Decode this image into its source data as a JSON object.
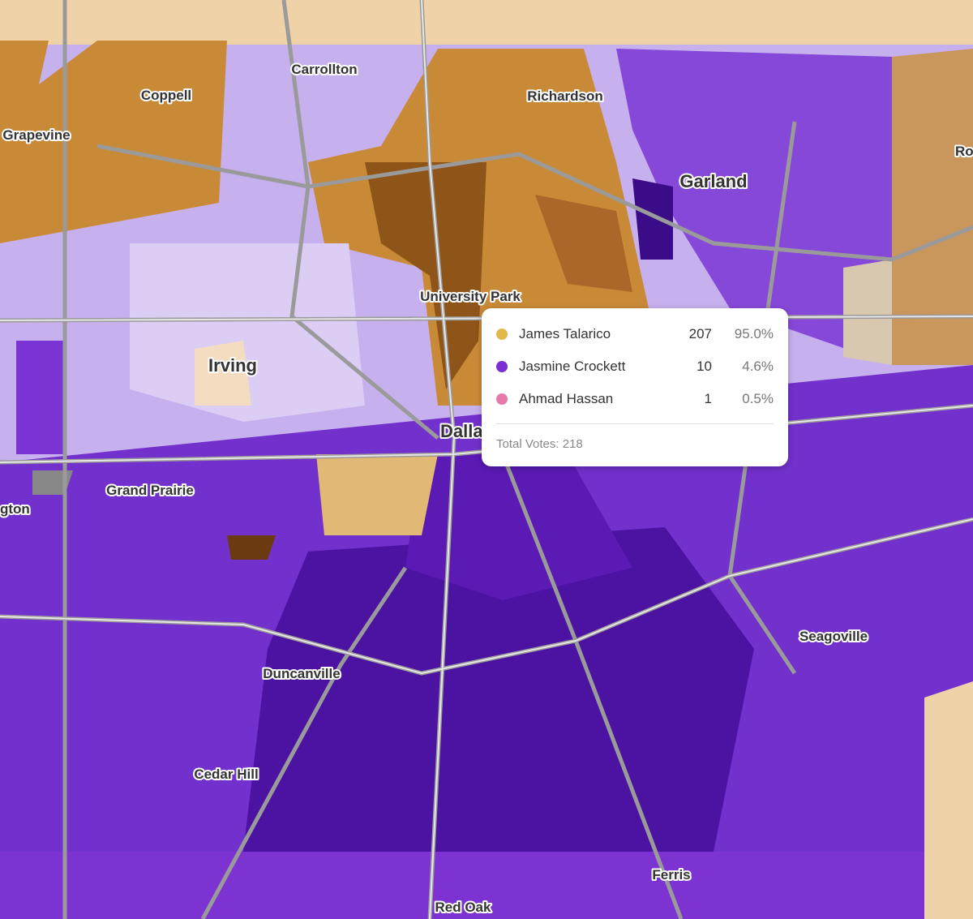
{
  "places": [
    "Carrollton",
    "Coppell",
    "Richardson",
    "Grapevine",
    "Garland",
    "Ro",
    "University Park",
    "Irving",
    "Dallas",
    "Grand Prairie",
    "gton",
    "Seagoville",
    "Duncanville",
    "Cedar Hill",
    "Ferris",
    "Red Oak"
  ],
  "tooltip": {
    "rows": [
      {
        "name": "James Talarico",
        "votes": 207,
        "share": "95.0%",
        "color": "#e2b84a"
      },
      {
        "name": "Jasmine Crockett",
        "votes": 10,
        "share": "4.6%",
        "color": "#7b2fd3"
      },
      {
        "name": "Ahmad Hassan",
        "votes": 1,
        "share": "0.5%",
        "color": "#e47aa9"
      }
    ],
    "total_label": "Total Votes:",
    "total": 218
  }
}
